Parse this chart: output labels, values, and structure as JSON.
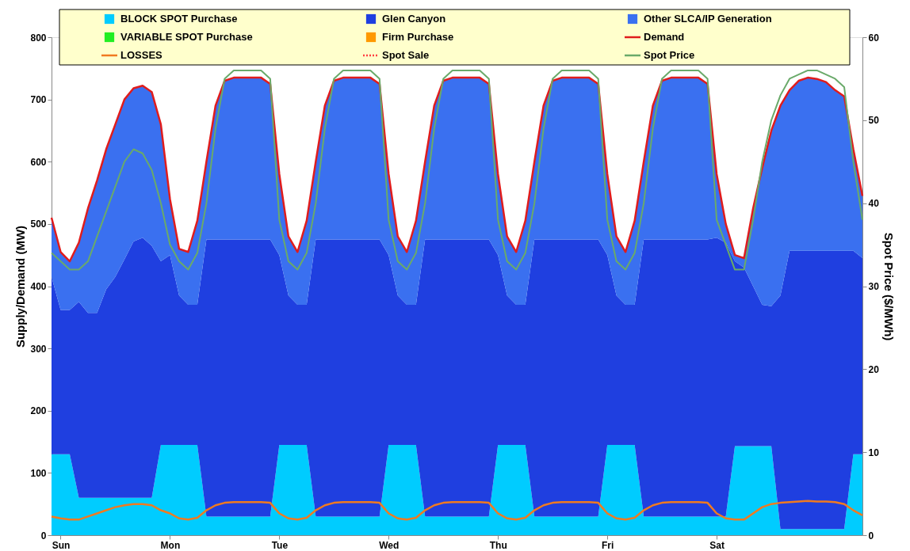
{
  "chart_data": {
    "type": "area",
    "stacked": true,
    "legend": "top",
    "grid": false,
    "ylabel": "Supply/Demand (MW)",
    "y2label": "Spot Price ($/MWh)",
    "categories": [
      null,
      "Sun",
      null,
      null,
      null,
      null,
      null,
      null,
      null,
      null,
      null,
      null,
      null,
      "Mon",
      null,
      null,
      null,
      null,
      null,
      null,
      null,
      null,
      null,
      null,
      null,
      "Tue",
      null,
      null,
      null,
      null,
      null,
      null,
      null,
      null,
      null,
      null,
      null,
      "Wed",
      null,
      null,
      null,
      null,
      null,
      null,
      null,
      null,
      null,
      null,
      null,
      "Thu",
      null,
      null,
      null,
      null,
      null,
      null,
      null,
      null,
      null,
      null,
      null,
      "Fri",
      null,
      null,
      null,
      null,
      null,
      null,
      null,
      null,
      null,
      null,
      null,
      "Sat",
      null,
      null,
      null,
      null,
      null,
      null,
      null,
      null,
      null,
      null,
      null,
      null,
      null,
      null,
      null,
      null
    ],
    "ylim": [
      0,
      800
    ],
    "yticks": [
      0,
      100,
      200,
      300,
      400,
      500,
      600,
      700,
      800
    ],
    "y2lim": [
      0,
      60
    ],
    "y2ticks": [
      0,
      10,
      20,
      30,
      40,
      50,
      60
    ],
    "series": [
      {
        "name": "BLOCK SPOT Purchase",
        "color": "#00ccff",
        "values": [
          130,
          130,
          130,
          60,
          60,
          60,
          60,
          60,
          60,
          60,
          60,
          60,
          145,
          145,
          145,
          145,
          145,
          30,
          30,
          30,
          30,
          30,
          30,
          30,
          30,
          145,
          145,
          145,
          145,
          30,
          30,
          30,
          30,
          30,
          30,
          30,
          30,
          145,
          145,
          145,
          145,
          30,
          30,
          30,
          30,
          30,
          30,
          30,
          30,
          145,
          145,
          145,
          145,
          30,
          30,
          30,
          30,
          30,
          30,
          30,
          30,
          145,
          145,
          145,
          145,
          30,
          30,
          30,
          30,
          30,
          30,
          30,
          30,
          30,
          30,
          143,
          143,
          143,
          143,
          143,
          10,
          10,
          10,
          10,
          10,
          10,
          10,
          10,
          130,
          130
        ]
      },
      {
        "name": "Glen Canyon",
        "color": "#1f3fe0",
        "values": [
          285,
          232,
          232,
          315,
          297,
          297,
          335,
          355,
          383,
          412,
          418,
          405,
          295,
          305,
          240,
          225,
          225,
          445,
          445,
          445,
          445,
          445,
          445,
          445,
          445,
          305,
          240,
          225,
          225,
          445,
          445,
          445,
          445,
          445,
          445,
          445,
          445,
          305,
          240,
          225,
          225,
          445,
          445,
          445,
          445,
          445,
          445,
          445,
          445,
          305,
          240,
          225,
          225,
          445,
          445,
          445,
          445,
          445,
          445,
          445,
          445,
          305,
          240,
          225,
          225,
          445,
          445,
          445,
          445,
          445,
          445,
          445,
          445,
          448,
          440,
          297,
          287,
          257,
          227,
          225,
          375,
          447,
          447,
          447,
          447,
          447,
          447,
          447,
          327,
          315
        ]
      },
      {
        "name": "Other SLCA/IP Generation",
        "color": "#3a70f0",
        "values": [
          95,
          93,
          78,
          95,
          168,
          213,
          225,
          245,
          257,
          246,
          244,
          247,
          220,
          90,
          75,
          85,
          135,
          125,
          215,
          255,
          260,
          260,
          260,
          260,
          250,
          130,
          95,
          85,
          135,
          125,
          215,
          255,
          260,
          260,
          260,
          260,
          250,
          130,
          95,
          85,
          135,
          125,
          215,
          255,
          260,
          260,
          260,
          260,
          250,
          130,
          95,
          85,
          135,
          125,
          215,
          255,
          260,
          260,
          260,
          260,
          250,
          130,
          95,
          85,
          135,
          125,
          215,
          255,
          260,
          260,
          260,
          260,
          250,
          102,
          30,
          10,
          15,
          125,
          220,
          282,
          305,
          258,
          273,
          278,
          276,
          271,
          258,
          248,
          163,
          100
        ]
      },
      {
        "name": "VARIABLE SPOT Purchase",
        "color": "#22ee22",
        "values": [
          null,
          null,
          null,
          null,
          null,
          null,
          null,
          null,
          null,
          null,
          null,
          null,
          null,
          null,
          null,
          null,
          null,
          null,
          null,
          null,
          null,
          null,
          null,
          null,
          null,
          null,
          null,
          null,
          null,
          null,
          null,
          null,
          null,
          null,
          null,
          null,
          null,
          null,
          null,
          null,
          null,
          null,
          null,
          null,
          null,
          null,
          null,
          null,
          null,
          null,
          null,
          null,
          null,
          null,
          null,
          null,
          null,
          null,
          null,
          null,
          null,
          null,
          null,
          null,
          null,
          null,
          null,
          null,
          null,
          null,
          null,
          null,
          null,
          null,
          null,
          null,
          null,
          null,
          null,
          null,
          null,
          null,
          null,
          null,
          null,
          null,
          null,
          null,
          null,
          null
        ]
      },
      {
        "name": "Firm Purchase",
        "color": "#ff9900",
        "values": [
          null,
          null,
          null,
          null,
          null,
          null,
          null,
          null,
          null,
          null,
          null,
          null,
          null,
          null,
          null,
          null,
          null,
          null,
          null,
          null,
          null,
          null,
          null,
          null,
          null,
          null,
          null,
          null,
          null,
          null,
          null,
          null,
          null,
          null,
          null,
          null,
          null,
          null,
          null,
          null,
          null,
          null,
          null,
          null,
          null,
          null,
          null,
          null,
          null,
          null,
          null,
          null,
          null,
          null,
          null,
          null,
          null,
          null,
          null,
          null,
          null,
          null,
          null,
          null,
          null,
          null,
          null,
          null,
          null,
          null,
          null,
          null,
          null,
          null,
          null,
          null,
          null,
          null,
          null,
          null,
          null,
          null,
          null,
          null,
          null,
          null,
          null,
          null,
          null,
          null
        ]
      },
      {
        "name": "Demand",
        "type": "line",
        "color": "#e01c1c",
        "values": [
          510,
          455,
          440,
          470,
          525,
          570,
          620,
          660,
          700,
          718,
          722,
          712,
          660,
          540,
          460,
          455,
          505,
          600,
          690,
          730,
          735,
          735,
          735,
          735,
          725,
          580,
          480,
          455,
          505,
          600,
          690,
          730,
          735,
          735,
          735,
          735,
          725,
          580,
          480,
          455,
          505,
          600,
          690,
          730,
          735,
          735,
          735,
          735,
          725,
          580,
          480,
          455,
          505,
          600,
          690,
          730,
          735,
          735,
          735,
          735,
          725,
          580,
          480,
          455,
          505,
          600,
          690,
          730,
          735,
          735,
          735,
          735,
          725,
          580,
          500,
          450,
          445,
          525,
          590,
          650,
          690,
          715,
          730,
          735,
          733,
          728,
          715,
          705,
          620,
          545
        ]
      },
      {
        "name": "LOSSES",
        "type": "line",
        "color": "#f07a20",
        "values": [
          30,
          27,
          25,
          25,
          30,
          35,
          40,
          45,
          48,
          50,
          50,
          48,
          40,
          35,
          27,
          25,
          28,
          40,
          48,
          52,
          53,
          53,
          53,
          53,
          52,
          35,
          27,
          25,
          28,
          40,
          48,
          52,
          53,
          53,
          53,
          53,
          52,
          35,
          27,
          25,
          28,
          40,
          48,
          52,
          53,
          53,
          53,
          53,
          52,
          35,
          27,
          25,
          28,
          40,
          48,
          52,
          53,
          53,
          53,
          53,
          52,
          35,
          27,
          25,
          28,
          40,
          48,
          52,
          53,
          53,
          53,
          53,
          52,
          35,
          27,
          25,
          25,
          35,
          45,
          50,
          52,
          53,
          54,
          55,
          54,
          54,
          53,
          50,
          40,
          32
        ]
      },
      {
        "name": "Spot Sale",
        "type": "line",
        "line_style": "dotted",
        "color": "#ff4040",
        "values": [
          null,
          null,
          null,
          null,
          null,
          null,
          null,
          null,
          null,
          null,
          null,
          null,
          null,
          null,
          null,
          null,
          null,
          null,
          null,
          null,
          null,
          null,
          null,
          null,
          null,
          null,
          null,
          null,
          null,
          null,
          null,
          null,
          null,
          null,
          null,
          null,
          null,
          null,
          null,
          null,
          null,
          null,
          null,
          null,
          null,
          null,
          null,
          null,
          null,
          null,
          null,
          null,
          null,
          null,
          null,
          null,
          null,
          null,
          null,
          null,
          null,
          null,
          null,
          null,
          null,
          null,
          null,
          null,
          null,
          null,
          null,
          null,
          null,
          null,
          null,
          null,
          null,
          null,
          null,
          null,
          null,
          null,
          null,
          null,
          null,
          null,
          null,
          null,
          null,
          null
        ]
      },
      {
        "name": "Spot Price",
        "type": "line",
        "axis": "y2",
        "color": "#6aaa6a",
        "values": [
          34,
          33,
          32,
          32,
          33,
          36,
          39,
          42,
          45,
          46.5,
          46,
          44,
          40,
          35,
          33,
          32,
          34,
          40,
          49,
          55,
          56,
          56,
          56,
          56,
          55,
          38,
          33,
          32,
          34,
          40,
          49,
          55,
          56,
          56,
          56,
          56,
          55,
          38,
          33,
          32,
          34,
          40,
          49,
          55,
          56,
          56,
          56,
          56,
          55,
          38,
          33,
          32,
          34,
          40,
          49,
          55,
          56,
          56,
          56,
          56,
          55,
          38,
          33,
          32,
          34,
          40,
          49,
          55,
          56,
          56,
          56,
          56,
          55,
          38,
          35,
          32,
          32,
          38,
          45,
          50,
          53,
          55,
          55.5,
          56,
          56,
          55.5,
          55,
          54,
          45,
          38
        ]
      }
    ]
  }
}
